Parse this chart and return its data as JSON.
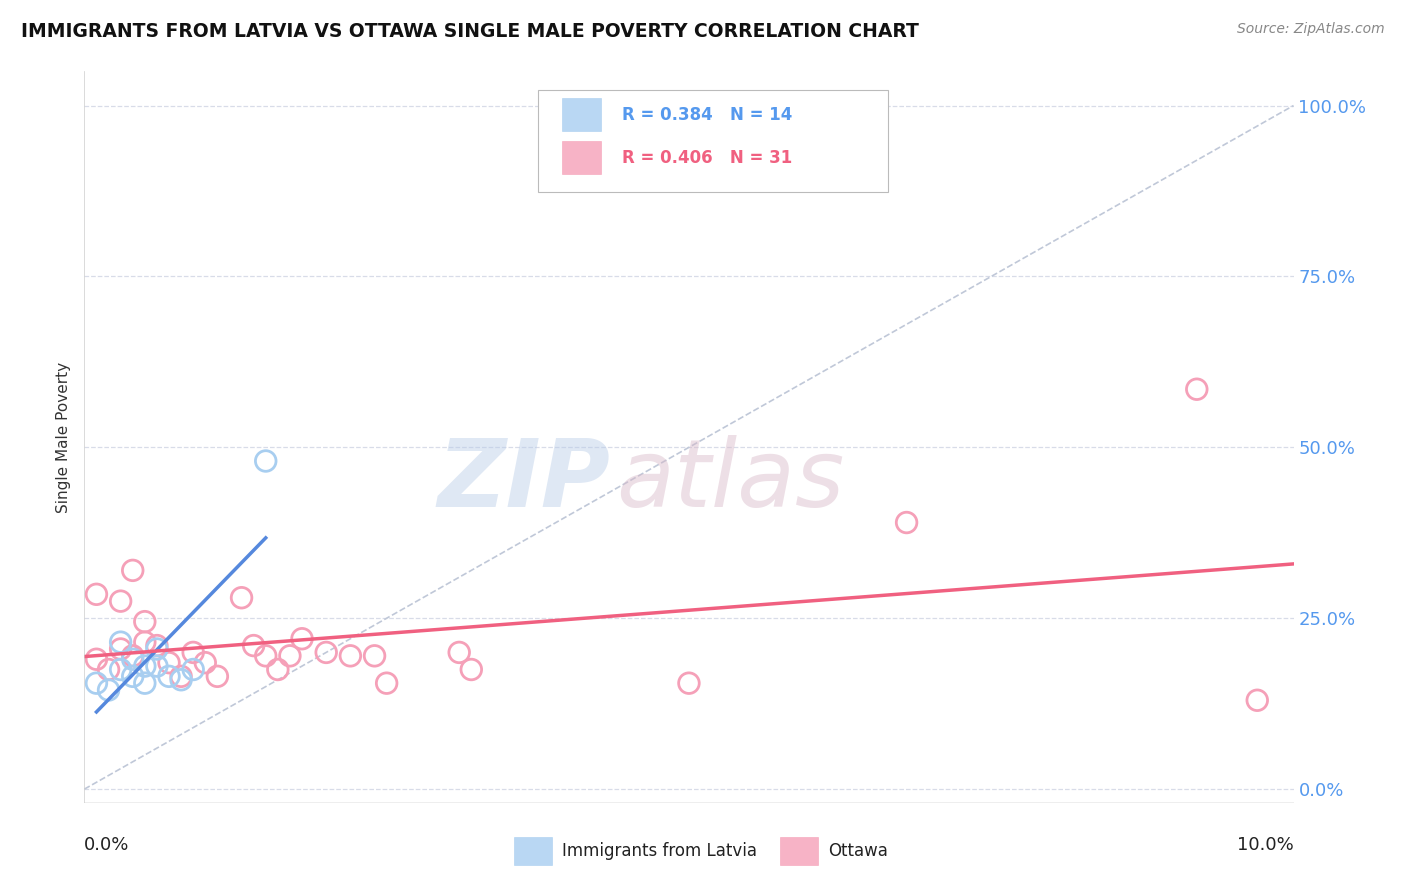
{
  "title": "IMMIGRANTS FROM LATVIA VS OTTAWA SINGLE MALE POVERTY CORRELATION CHART",
  "source": "Source: ZipAtlas.com",
  "ylabel": "Single Male Poverty",
  "ytick_labels": [
    "0.0%",
    "25.0%",
    "50.0%",
    "75.0%",
    "100.0%"
  ],
  "ytick_values": [
    0.0,
    0.25,
    0.5,
    0.75,
    1.0
  ],
  "xmin": 0.0,
  "xmax": 0.1,
  "ymin": -0.02,
  "ymax": 1.05,
  "legend_r1": "R = 0.384",
  "legend_n1": "N = 14",
  "legend_r2": "R = 0.406",
  "legend_n2": "N = 31",
  "blue_color": "#a8cef0",
  "pink_color": "#f5a0b8",
  "blue_line_color": "#5588dd",
  "pink_line_color": "#f06080",
  "diag_color": "#c0c8d8",
  "watermark_zip": "ZIP",
  "watermark_atlas": "atlas",
  "blue_points_x": [
    0.001,
    0.002,
    0.003,
    0.003,
    0.004,
    0.004,
    0.005,
    0.005,
    0.006,
    0.006,
    0.007,
    0.008,
    0.009,
    0.015
  ],
  "blue_points_y": [
    0.155,
    0.145,
    0.175,
    0.215,
    0.19,
    0.165,
    0.155,
    0.18,
    0.205,
    0.18,
    0.165,
    0.16,
    0.175,
    0.48
  ],
  "pink_points_x": [
    0.001,
    0.001,
    0.002,
    0.003,
    0.003,
    0.004,
    0.004,
    0.005,
    0.005,
    0.006,
    0.007,
    0.008,
    0.009,
    0.01,
    0.011,
    0.013,
    0.014,
    0.015,
    0.016,
    0.017,
    0.018,
    0.02,
    0.022,
    0.024,
    0.025,
    0.031,
    0.032,
    0.05,
    0.068,
    0.092,
    0.097
  ],
  "pink_points_y": [
    0.19,
    0.285,
    0.175,
    0.205,
    0.275,
    0.195,
    0.32,
    0.215,
    0.245,
    0.21,
    0.185,
    0.165,
    0.2,
    0.185,
    0.165,
    0.28,
    0.21,
    0.195,
    0.175,
    0.195,
    0.22,
    0.2,
    0.195,
    0.195,
    0.155,
    0.2,
    0.175,
    0.155,
    0.39,
    0.585,
    0.13
  ]
}
